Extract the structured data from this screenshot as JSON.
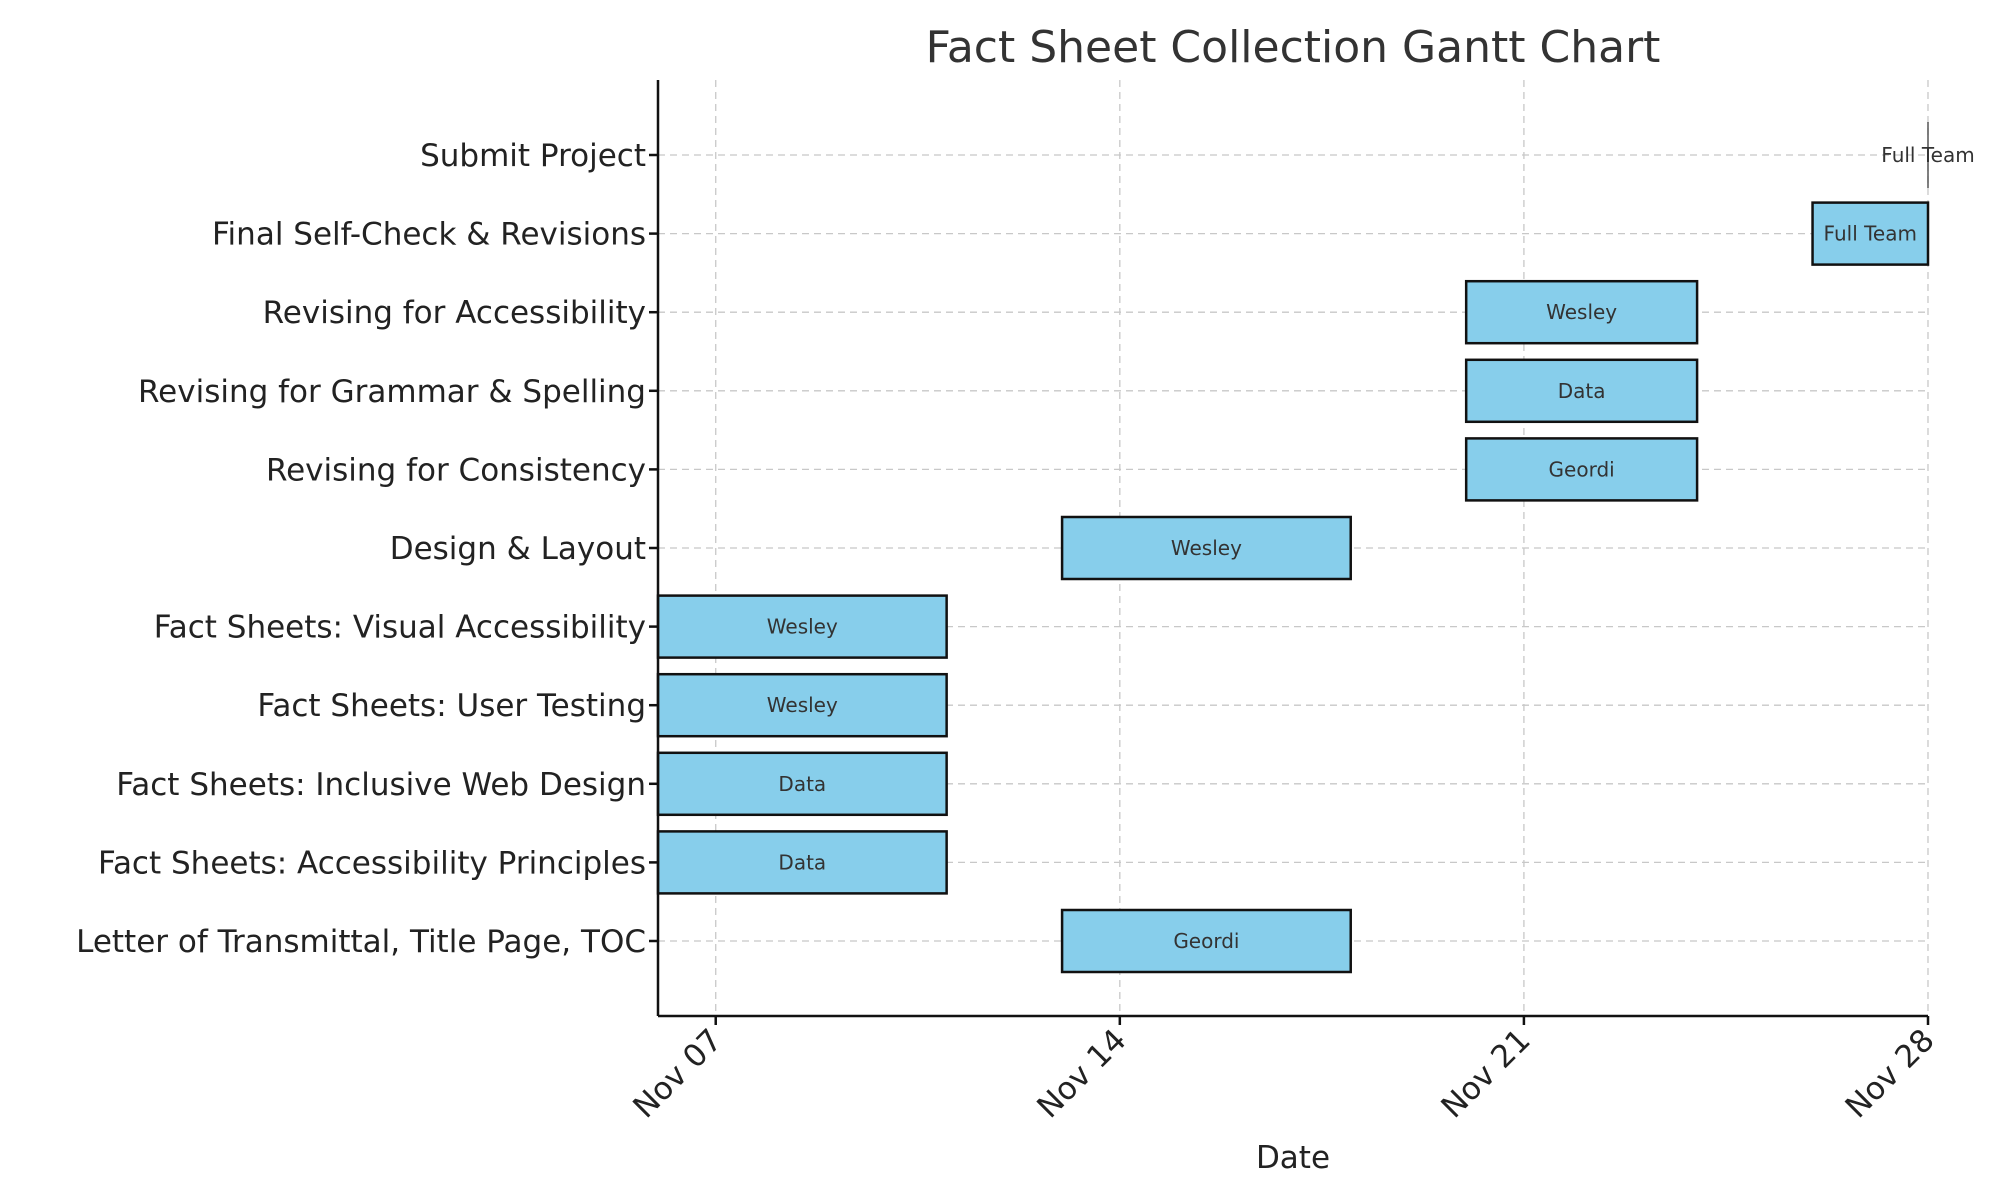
{
  "chart_data": {
    "type": "gantt",
    "title": "Fact Sheet Collection Gantt Chart",
    "xlabel": "Date",
    "ylabel": "",
    "xlim": [
      "2023-11-06",
      "2023-11-28"
    ],
    "xticks": [
      "2023-11-07",
      "2023-11-14",
      "2023-11-21",
      "2023-11-28"
    ],
    "xtick_labels": [
      "Nov 07",
      "Nov 14",
      "Nov 21",
      "Nov 28"
    ],
    "grid": true,
    "bar_color": "#87CEEB",
    "bar_edge_color": "#111111",
    "tasks": [
      {
        "name": "Letter of Transmittal, Title Page, TOC",
        "start": "2023-11-13",
        "end": "2023-11-18",
        "owner": "Geordi"
      },
      {
        "name": "Fact Sheets: Accessibility Principles",
        "start": "2023-11-06",
        "end": "2023-11-11",
        "owner": "Data"
      },
      {
        "name": "Fact Sheets: Inclusive Web Design",
        "start": "2023-11-06",
        "end": "2023-11-11",
        "owner": "Data"
      },
      {
        "name": "Fact Sheets: User Testing",
        "start": "2023-11-06",
        "end": "2023-11-11",
        "owner": "Wesley"
      },
      {
        "name": "Fact Sheets: Visual Accessibility",
        "start": "2023-11-06",
        "end": "2023-11-11",
        "owner": "Wesley"
      },
      {
        "name": "Design & Layout",
        "start": "2023-11-13",
        "end": "2023-11-18",
        "owner": "Wesley"
      },
      {
        "name": "Revising for Consistency",
        "start": "2023-11-20",
        "end": "2023-11-24",
        "owner": "Geordi"
      },
      {
        "name": "Revising for Grammar & Spelling",
        "start": "2023-11-20",
        "end": "2023-11-24",
        "owner": "Data"
      },
      {
        "name": "Revising for Accessibility",
        "start": "2023-11-20",
        "end": "2023-11-24",
        "owner": "Wesley"
      },
      {
        "name": "Final Self-Check & Revisions",
        "start": "2023-11-26",
        "end": "2023-11-28",
        "owner": "Full Team"
      },
      {
        "name": "Submit Project",
        "start": "2023-11-28",
        "end": "2023-11-28",
        "owner": "Full Team"
      }
    ]
  }
}
